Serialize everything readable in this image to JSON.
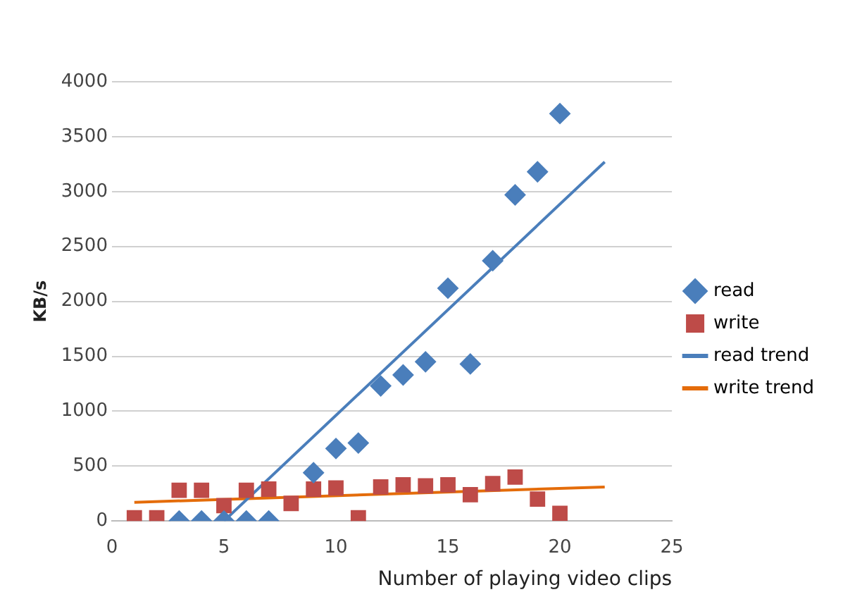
{
  "chart_data": {
    "type": "scatter",
    "xlabel": "Number of playing video clips",
    "ylabel": "KB/s",
    "x": [
      1,
      2,
      3,
      4,
      5,
      6,
      7,
      8,
      9,
      10,
      11,
      12,
      13,
      14,
      15,
      16,
      17,
      18,
      19,
      20
    ],
    "series": [
      {
        "name": "read",
        "color": "#4a7ebb",
        "marker": "diamond",
        "values": [
          null,
          null,
          0,
          0,
          0,
          0,
          0,
          null,
          440,
          660,
          710,
          1230,
          1330,
          1450,
          2120,
          1430,
          2370,
          2970,
          3180,
          3710
        ]
      },
      {
        "name": "write",
        "color": "#be4b48",
        "marker": "square",
        "values": [
          30,
          30,
          280,
          280,
          140,
          280,
          290,
          160,
          290,
          300,
          30,
          310,
          330,
          320,
          330,
          240,
          340,
          400,
          200,
          70
        ]
      },
      {
        "name": "read trend",
        "type": "line",
        "color": "#4a7ebb",
        "marker": "none",
        "x": [
          5,
          22
        ],
        "values": [
          0,
          3270
        ]
      },
      {
        "name": "write trend",
        "type": "line",
        "color": "#e46c0a",
        "marker": "none",
        "x": [
          1,
          22
        ],
        "values": [
          170,
          310
        ]
      }
    ],
    "xlim": [
      0,
      25
    ],
    "xticks": [
      0,
      5,
      10,
      15,
      20,
      25
    ],
    "ylim": [
      0,
      4000
    ],
    "yticks": [
      0,
      500,
      1000,
      1500,
      2000,
      2500,
      3000,
      3500,
      4000
    ],
    "grid": "y",
    "legend": "right"
  }
}
